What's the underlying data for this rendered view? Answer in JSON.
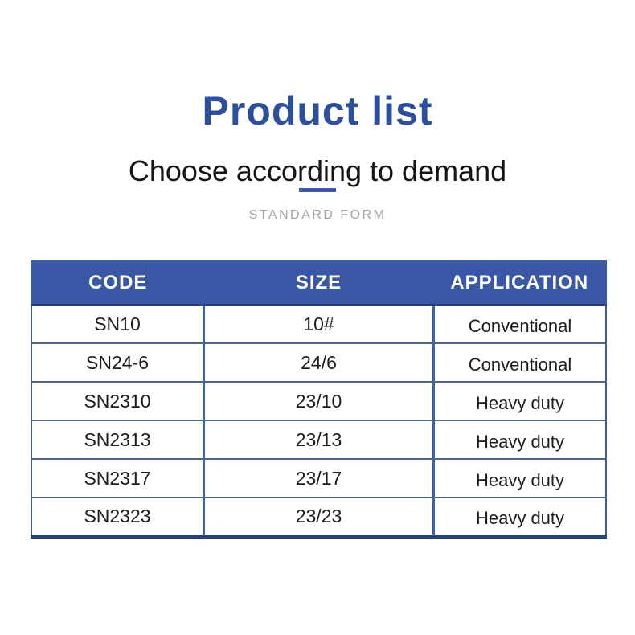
{
  "page": {
    "title": "Product list",
    "subtitle": "Choose according to demand",
    "section_label": "STANDARD FORM"
  },
  "colors": {
    "title_blue": "#2d4f9e",
    "header_bg": "#3a57a5",
    "border_blue": "#3a5ca9",
    "col_divider": "#3f62ac",
    "dark_navy": "#2b4177",
    "row_divider": "#50627c",
    "body_text": "#1c1c1c",
    "subtitle_text": "#151515",
    "label_gray": "#a5a5a5"
  },
  "table": {
    "columns": [
      "CODE",
      "SIZE",
      "APPLICATION"
    ],
    "rows": [
      {
        "code": "SN10",
        "size": "10#",
        "application": "Conventional"
      },
      {
        "code": "SN24-6",
        "size": "24/6",
        "application": "Conventional"
      },
      {
        "code": "SN2310",
        "size": "23/10",
        "application": "Heavy duty"
      },
      {
        "code": "SN2313",
        "size": "23/13",
        "application": "Heavy duty"
      },
      {
        "code": "SN2317",
        "size": "23/17",
        "application": "Heavy duty"
      },
      {
        "code": "SN2323",
        "size": "23/23",
        "application": "Heavy duty"
      }
    ]
  }
}
